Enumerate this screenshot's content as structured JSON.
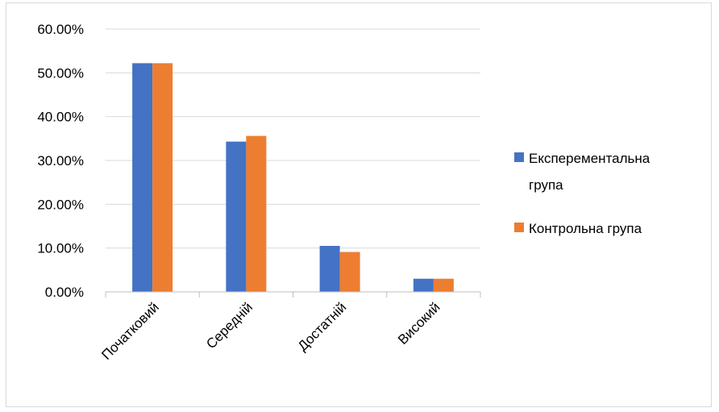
{
  "chart_data": {
    "type": "bar",
    "title": "",
    "xlabel": "",
    "ylabel": "",
    "categories": [
      "Початковий",
      "Середній",
      "Достатній",
      "Високий"
    ],
    "series": [
      {
        "name": "Експерементальна група",
        "name_lines": [
          "Експерементальна",
          "група"
        ],
        "color": "#4472C4",
        "values": [
          0.522,
          0.343,
          0.105,
          0.03
        ]
      },
      {
        "name": "Контрольна група",
        "name_lines": [
          "Контрольна група"
        ],
        "color": "#ED7D31",
        "values": [
          0.522,
          0.356,
          0.091,
          0.03
        ]
      }
    ],
    "ylim": [
      0,
      0.6
    ],
    "yticks": [
      0,
      0.1,
      0.2,
      0.3,
      0.4,
      0.5,
      0.6
    ],
    "ytick_labels": [
      "0.00%",
      "10.00%",
      "20.00%",
      "30.00%",
      "40.00%",
      "50.00%",
      "60.00%"
    ],
    "grid": true,
    "legend_position": "right",
    "gridline_color": "#d9d9d9",
    "axis_color": "#bfbfbf"
  }
}
